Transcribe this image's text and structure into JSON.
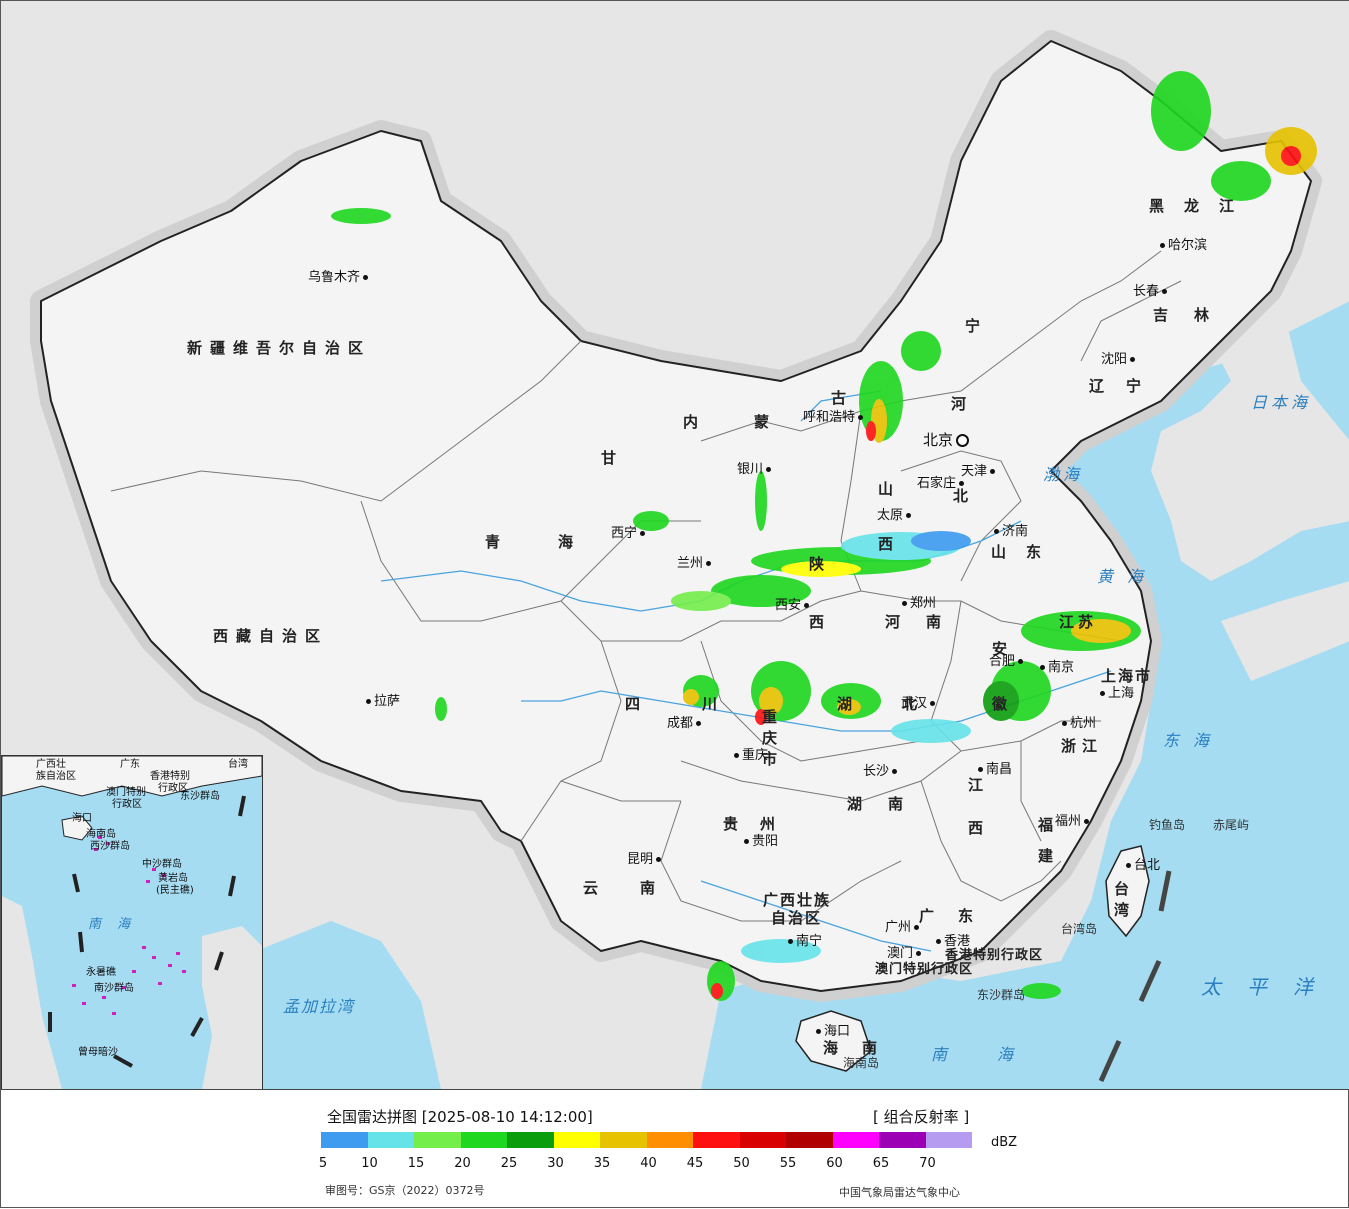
{
  "map": {
    "colors": {
      "land": "#f4f4f4",
      "sea": "#a6dcf2",
      "neighbor": "#e6e6e6",
      "border": "#222222",
      "provinceline": "#777777",
      "river": "#4aa3df",
      "halo": "#d0d0d0"
    },
    "cities": [
      {
        "name": "乌鲁木齐",
        "dot": "right"
      },
      {
        "name": "呼和浩特",
        "dot": "right"
      },
      {
        "name": "北京",
        "dot": "right"
      },
      {
        "name": "天津",
        "dot": "left"
      },
      {
        "name": "石家庄",
        "dot": "right"
      },
      {
        "name": "太原",
        "dot": "right"
      },
      {
        "name": "银川",
        "dot": "right"
      },
      {
        "name": "西宁",
        "dot": "right"
      },
      {
        "name": "兰州",
        "dot": "right"
      },
      {
        "name": "西安",
        "dot": "right"
      },
      {
        "name": "郑州",
        "dot": "left"
      },
      {
        "name": "济南",
        "dot": "left"
      },
      {
        "name": "哈尔滨",
        "dot": "left"
      },
      {
        "name": "长春",
        "dot": "right"
      },
      {
        "name": "沈阳",
        "dot": "right"
      },
      {
        "name": "合肥",
        "dot": "right"
      },
      {
        "name": "南京",
        "dot": "left"
      },
      {
        "name": "上海",
        "dot": "left"
      },
      {
        "name": "杭州",
        "dot": "left"
      },
      {
        "name": "武汉",
        "dot": "right"
      },
      {
        "name": "成都",
        "dot": "right"
      },
      {
        "name": "重庆",
        "dot": "left"
      },
      {
        "name": "拉萨",
        "dot": "left"
      },
      {
        "name": "长沙",
        "dot": "right"
      },
      {
        "name": "南昌",
        "dot": "left"
      },
      {
        "name": "福州",
        "dot": "right"
      },
      {
        "name": "贵阳",
        "dot": "left"
      },
      {
        "name": "昆明",
        "dot": "right"
      },
      {
        "name": "南宁",
        "dot": "left"
      },
      {
        "name": "广州",
        "dot": "right"
      },
      {
        "name": "香港",
        "dot": "left"
      },
      {
        "name": "澳门",
        "dot": "right"
      },
      {
        "name": "海口",
        "dot": "left"
      },
      {
        "name": "台北",
        "dot": "left"
      }
    ],
    "provinces": [
      "新疆维吾尔自治区",
      "西藏自治区",
      "青海",
      "甘",
      "内蒙",
      "古",
      "黑龙江",
      "吉林",
      "辽宁",
      "河",
      "北",
      "山西",
      "山东",
      "陕",
      "西",
      "河南",
      "江苏",
      "安徽",
      "上海市",
      "浙江",
      "湖北",
      "湖南",
      "江西",
      "福建",
      "四川",
      "重庆市",
      "贵州",
      "云南",
      "广西壮族",
      "自治区",
      "广东",
      "海南",
      "台湾",
      "宁",
      "香港特别行政区",
      "澳门特别行政区"
    ],
    "seas": [
      "日本海",
      "渤海",
      "黄海",
      "东海",
      "太平洋",
      "南海",
      "孟加拉湾"
    ],
    "islands": [
      "钓鱼岛",
      "赤尾屿",
      "台湾岛",
      "东沙群岛",
      "海南岛"
    ]
  },
  "inset": {
    "labels": [
      "广西壮",
      "族自治区",
      "广东",
      "香港特别",
      "行政区",
      "澳门特别",
      "行政区",
      "台湾",
      "海口",
      "海南岛",
      "西沙群岛",
      "中沙群岛",
      "黄岩岛",
      "(民主礁)",
      "永暑礁",
      "南沙群岛",
      "曾母暗沙",
      "东沙群岛"
    ],
    "sea": "南 海"
  },
  "legend": {
    "title": "全国雷达拼图 [2025-08-10 14:12:00]",
    "product": "[ 组合反射率 ]",
    "unit": "dBZ",
    "colors": [
      "#3d9bf0",
      "#66e3e9",
      "#74ee4a",
      "#1ed71e",
      "#0c9d0c",
      "#ffff00",
      "#e6c200",
      "#ff8f00",
      "#ff1010",
      "#d80000",
      "#b00000",
      "#ff00ff",
      "#9b00b5",
      "#b69cf0"
    ],
    "ticks": [
      "5",
      "10",
      "15",
      "20",
      "25",
      "30",
      "35",
      "40",
      "45",
      "50",
      "55",
      "60",
      "65",
      "70"
    ],
    "approval": "审图号：GS京（2022）0372号",
    "agency": "中国气象局雷达气象中心"
  }
}
